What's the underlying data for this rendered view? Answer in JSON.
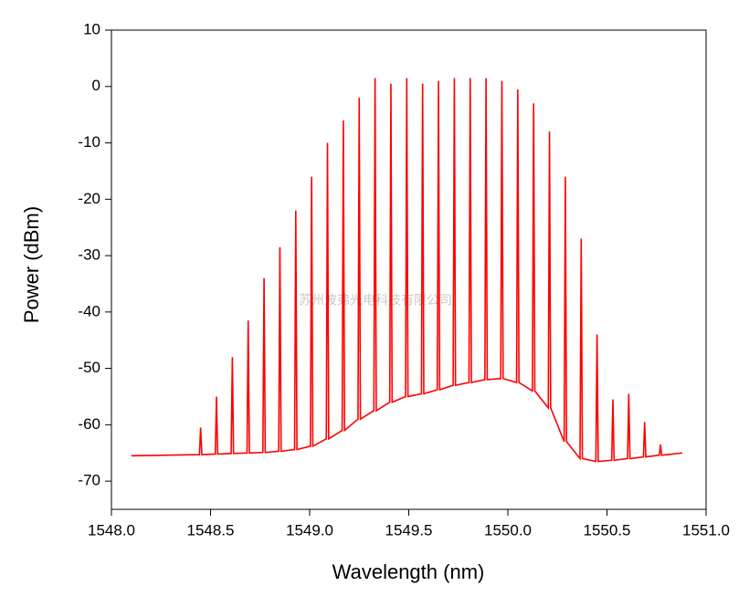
{
  "chart_data": {
    "type": "line",
    "xlabel": "Wavelength (nm)",
    "ylabel": "Power (dBm)",
    "annotation": "苏州波弗光电科技有限公司",
    "color": "#ff0000",
    "xlim": [
      1548,
      1551
    ],
    "ylim": [
      -75,
      10
    ],
    "xticks": [
      {
        "value": 1548,
        "label": "1548.0"
      },
      {
        "value": 1548.5,
        "label": "1548.5"
      },
      {
        "value": 1549,
        "label": "1549.0"
      },
      {
        "value": 1549.5,
        "label": "1549.5"
      },
      {
        "value": 1550,
        "label": "1550.0"
      },
      {
        "value": 1550.5,
        "label": "1550.5"
      },
      {
        "value": 1551,
        "label": "1551.0"
      }
    ],
    "yticks": [
      10,
      0,
      -10,
      -20,
      -30,
      -40,
      -50,
      -60,
      -70
    ],
    "x": [
      1548.1,
      1548.444,
      1548.45,
      1548.456,
      1548.524,
      1548.53,
      1548.536,
      1548.604,
      1548.61,
      1548.616,
      1548.684,
      1548.69,
      1548.696,
      1548.764,
      1548.77,
      1548.776,
      1548.844,
      1548.85,
      1548.856,
      1548.924,
      1548.93,
      1548.936,
      1549.004,
      1549.01,
      1549.016,
      1549.084,
      1549.09,
      1549.096,
      1549.164,
      1549.17,
      1549.176,
      1549.244,
      1549.25,
      1549.256,
      1549.324,
      1549.33,
      1549.336,
      1549.404,
      1549.41,
      1549.416,
      1549.484,
      1549.49,
      1549.496,
      1549.564,
      1549.57,
      1549.576,
      1549.644,
      1549.65,
      1549.656,
      1549.724,
      1549.73,
      1549.736,
      1549.804,
      1549.81,
      1549.816,
      1549.884,
      1549.89,
      1549.896,
      1549.964,
      1549.97,
      1549.976,
      1550.044,
      1550.05,
      1550.056,
      1550.124,
      1550.13,
      1550.136,
      1550.204,
      1550.21,
      1550.216,
      1550.284,
      1550.29,
      1550.296,
      1550.364,
      1550.37,
      1550.376,
      1550.444,
      1550.45,
      1550.456,
      1550.524,
      1550.53,
      1550.536,
      1550.604,
      1550.61,
      1550.616,
      1550.684,
      1550.69,
      1550.696,
      1550.764,
      1550.77,
      1550.776,
      1550.88
    ],
    "values": [
      -65.5,
      -65.3,
      -60.5,
      -65.3,
      -65.2,
      -55,
      -65.2,
      -65.1,
      -48,
      -65.1,
      -65.0,
      -41.5,
      -65.0,
      -64.9,
      -34,
      -64.9,
      -64.7,
      -28.5,
      -64.7,
      -64.4,
      -22,
      -64.4,
      -63.8,
      -16,
      -63.8,
      -62.5,
      -10,
      -62.5,
      -61.0,
      -6,
      -61.0,
      -59.0,
      -2,
      -59.0,
      -57.5,
      1.5,
      -57.5,
      -56.0,
      0.5,
      -56.0,
      -55.0,
      1.5,
      -55.0,
      -54.5,
      0.5,
      -54.5,
      -53.8,
      1,
      -53.8,
      -53.0,
      1.5,
      -53.0,
      -52.5,
      1.5,
      -52.5,
      -52.0,
      1.5,
      -52.0,
      -51.8,
      1,
      -51.8,
      -52.5,
      -0.5,
      -52.5,
      -54.0,
      -3,
      -54.0,
      -57.0,
      -8,
      -57.0,
      -63.0,
      -16,
      -63.0,
      -66.0,
      -27,
      -66.0,
      -66.5,
      -44,
      -66.5,
      -66.3,
      -55.5,
      -66.3,
      -66.0,
      -54.5,
      -66.0,
      -65.7,
      -59.5,
      -65.7,
      -65.4,
      -63.5,
      -65.4,
      -65.0
    ]
  }
}
